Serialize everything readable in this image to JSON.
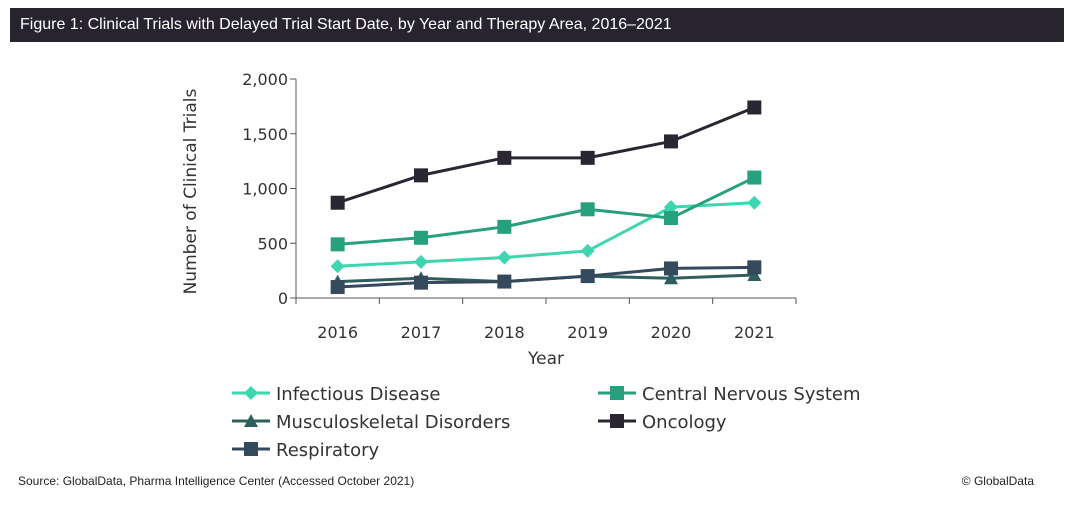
{
  "title": "Figure 1: Clinical Trials with Delayed Trial Start Date, by Year and Therapy Area, 2016–2021",
  "source": "Source: GlobalData, Pharma Intelligence Center (Accessed October 2021)",
  "copyright": "© GlobalData",
  "chart_data": {
    "type": "line",
    "title": "Figure 1: Clinical Trials with Delayed Trial Start Date, by Year and Therapy Area, 2016–2021",
    "xlabel": "Year",
    "ylabel": "Number of Clinical Trials",
    "ylim": [
      0,
      2000
    ],
    "yticks": [
      0,
      500,
      1000,
      1500,
      2000
    ],
    "ytick_labels": [
      "0",
      "500",
      "1,000",
      "1,500",
      "2,000"
    ],
    "categories": [
      "2016",
      "2017",
      "2018",
      "2019",
      "2020",
      "2021"
    ],
    "grid": false,
    "legend_position": "bottom",
    "series": [
      {
        "name": "Infectious Disease",
        "marker": "diamond",
        "color": "#3dd6b0",
        "values": [
          290,
          330,
          370,
          430,
          830,
          870
        ]
      },
      {
        "name": "Central Nervous System",
        "marker": "square",
        "color": "#27a07e",
        "values": [
          490,
          550,
          650,
          810,
          730,
          1100
        ]
      },
      {
        "name": "Musculoskeletal Disorders",
        "marker": "triangle",
        "color": "#2f5f5c",
        "values": [
          150,
          180,
          150,
          200,
          180,
          210
        ]
      },
      {
        "name": "Oncology",
        "marker": "square",
        "color": "#2a2633",
        "values": [
          870,
          1120,
          1280,
          1280,
          1430,
          1740
        ]
      },
      {
        "name": "Respiratory",
        "marker": "square",
        "color": "#34495c",
        "values": [
          100,
          140,
          150,
          200,
          270,
          280
        ]
      }
    ]
  }
}
